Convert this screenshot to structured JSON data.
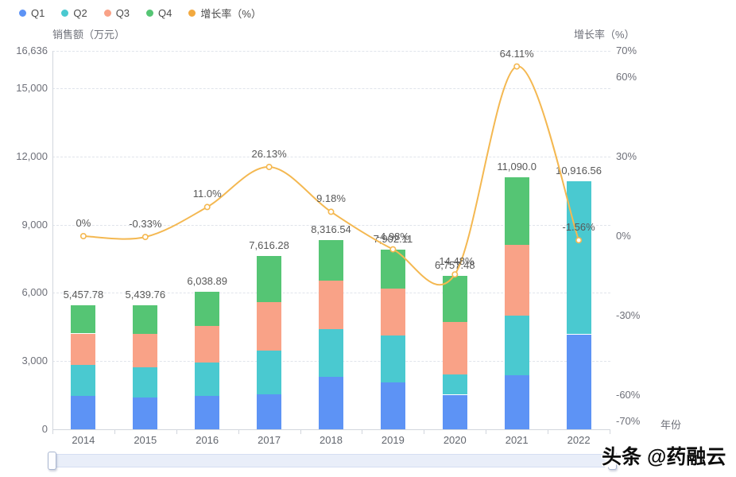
{
  "legend": {
    "items": [
      {
        "id": "q1",
        "label": "Q1",
        "color": "#5D93F5"
      },
      {
        "id": "q2",
        "label": "Q2",
        "color": "#4AC9D0"
      },
      {
        "id": "q3",
        "label": "Q3",
        "color": "#F9A287"
      },
      {
        "id": "q4",
        "label": "Q4",
        "color": "#55C574"
      },
      {
        "id": "growth",
        "label": "增长率（%）",
        "color": "#F2A93F"
      }
    ]
  },
  "watermark": {
    "text": "头条 @药融云"
  },
  "colors": {
    "q1": "#5D93F5",
    "q2": "#4AC9D0",
    "q3": "#F9A287",
    "q4": "#55C574",
    "line": "#F4B851",
    "grid": "#E0E4EB",
    "axis": "#D2D6DD",
    "tick_label": "#6E7079",
    "value_label": "#585858",
    "slider_fill": "#E9EEF9",
    "slider_border": "#D5DEF2"
  },
  "chart_data": {
    "type": "bar",
    "subtype": "stacked bars + smooth line on secondary axis",
    "title": "",
    "categories": [
      "2014",
      "2015",
      "2016",
      "2017",
      "2018",
      "2019",
      "2020",
      "2021",
      "2022"
    ],
    "series": [
      {
        "name": "Q1",
        "type": "bar",
        "stack": true,
        "color": "#5D93F5",
        "values": [
          1463,
          1403,
          1463,
          1544,
          2305,
          2070,
          1520,
          2362,
          4176
        ]
      },
      {
        "name": "Q2",
        "type": "bar",
        "stack": true,
        "color": "#4AC9D0",
        "values": [
          1368,
          1323,
          1484,
          1905,
          2105,
          2046,
          877,
          2646,
          6740.56
        ]
      },
      {
        "name": "Q3",
        "type": "bar",
        "stack": true,
        "color": "#F9A287",
        "values": [
          1379,
          1484,
          1590,
          2140,
          2140,
          2059,
          2316,
          3088,
          0
        ]
      },
      {
        "name": "Q4",
        "type": "bar",
        "stack": true,
        "color": "#55C574",
        "values": [
          1247.78,
          1229.76,
          1501.89,
          2027.28,
          1766.54,
          1727.11,
          2044.48,
          2994,
          0
        ]
      },
      {
        "name": "增长率（%）",
        "type": "line",
        "axis": "right",
        "color": "#F4B851",
        "values": [
          0,
          -0.33,
          11.0,
          26.13,
          9.18,
          -4.98,
          -14.48,
          64.11,
          -1.56
        ],
        "labels": [
          "0%",
          "-0.33%",
          "11.0%",
          "26.13%",
          "9.18%",
          "-4.98%",
          "-14.48%",
          "64.11%",
          "-1.56%"
        ]
      }
    ],
    "bar_totals": [
      5457.78,
      5439.76,
      6038.89,
      7616.28,
      8316.54,
      7902.11,
      6757.48,
      11090.0,
      10916.56
    ],
    "bar_total_labels": [
      "5,457.78",
      "5,439.76",
      "6,038.89",
      "7,616.28",
      "8,316.54",
      "7,902.11",
      "6,757.48",
      "11,090.0",
      "10,916.56"
    ],
    "left_axis": {
      "title": "销售额（万元）",
      "ticks": [
        {
          "label": "0",
          "value": 0
        },
        {
          "label": "3,000",
          "value": 3000
        },
        {
          "label": "6,000",
          "value": 6000
        },
        {
          "label": "9,000",
          "value": 9000
        },
        {
          "label": "12,000",
          "value": 12000
        },
        {
          "label": "15,000",
          "value": 15000
        },
        {
          "label": "16,636",
          "value": 16636
        }
      ],
      "max": 16636
    },
    "right_axis": {
      "title": "增长率（%）",
      "ticks": [
        {
          "label": "-70%",
          "value": -70
        },
        {
          "label": "-60%",
          "value": -60
        },
        {
          "label": "-30%",
          "value": -30
        },
        {
          "label": "0%",
          "value": 0
        },
        {
          "label": "30%",
          "value": 30
        },
        {
          "label": "60%",
          "value": 60
        },
        {
          "label": "70%",
          "value": 70
        }
      ],
      "max": 70
    },
    "x_axis": {
      "name": "年份"
    },
    "grid": "horizontal dashed",
    "legend_position": "top-left"
  }
}
